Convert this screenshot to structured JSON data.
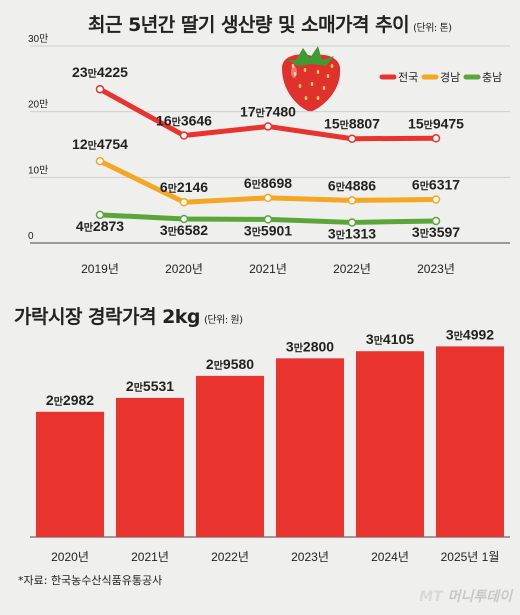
{
  "header": {
    "title": "최근 5년간 딸기 생산량 및 소매가격 추이",
    "unit": "(단위: 톤)"
  },
  "section2": {
    "title": "가락시장 경락가격 2kg",
    "unit": "(단위: 원)"
  },
  "footer": {
    "source": "*자료: 한국농수산식품유통공사",
    "credit_mt": "MT",
    "credit_name": "머니투데이"
  },
  "colors": {
    "national": "#e8332e",
    "gyeongnam": "#f5a623",
    "chungnam": "#5aa63a",
    "bar": "#e8332e",
    "strawberry": "#e0312c"
  },
  "chart_data": [
    {
      "type": "line",
      "title": "최근 5년간 딸기 생산량 및 소매가격 추이",
      "ylabel": "",
      "ylim": [
        0,
        300000
      ],
      "ytick_labels": [
        "0",
        "10만",
        "20만",
        "30만"
      ],
      "yticks": [
        0,
        100000,
        200000,
        300000
      ],
      "categories": [
        "2019년",
        "2020년",
        "2021년",
        "2022년",
        "2023년"
      ],
      "legend_position": "top-right",
      "series": [
        {
          "name": "전국",
          "values": [
            234225,
            163646,
            177480,
            158807,
            159475
          ],
          "labels": [
            [
              "23만",
              "4225"
            ],
            [
              "16만",
              "3646"
            ],
            [
              "17만",
              "7480"
            ],
            [
              "15만",
              "8807"
            ],
            [
              "15만",
              "9475"
            ]
          ]
        },
        {
          "name": "경남",
          "values": [
            124754,
            62146,
            68698,
            64886,
            66317
          ],
          "labels": [
            [
              "12만",
              "4754"
            ],
            [
              "6만",
              "2146"
            ],
            [
              "6만",
              "8698"
            ],
            [
              "6만",
              "4886"
            ],
            [
              "6만",
              "6317"
            ]
          ]
        },
        {
          "name": "충남",
          "values": [
            42873,
            36582,
            35901,
            31313,
            33597
          ],
          "labels": [
            [
              "4만",
              "2873"
            ],
            [
              "3만",
              "6582"
            ],
            [
              "3만",
              "5901"
            ],
            [
              "3만",
              "1313"
            ],
            [
              "3만",
              "3597"
            ]
          ]
        }
      ]
    },
    {
      "type": "bar",
      "title": "가락시장 경락가격 2kg",
      "categories": [
        "2020년",
        "2021년",
        "2022년",
        "2023년",
        "2024년",
        "2025년 1월"
      ],
      "values": [
        22982,
        25531,
        29580,
        32800,
        34105,
        34992
      ],
      "labels": [
        [
          "2만",
          "2982"
        ],
        [
          "2만",
          "5531"
        ],
        [
          "2만",
          "9580"
        ],
        [
          "3만",
          "2800"
        ],
        [
          "3만",
          "4105"
        ],
        [
          "3만",
          "4992"
        ]
      ],
      "ylim": [
        0,
        38000
      ]
    }
  ]
}
